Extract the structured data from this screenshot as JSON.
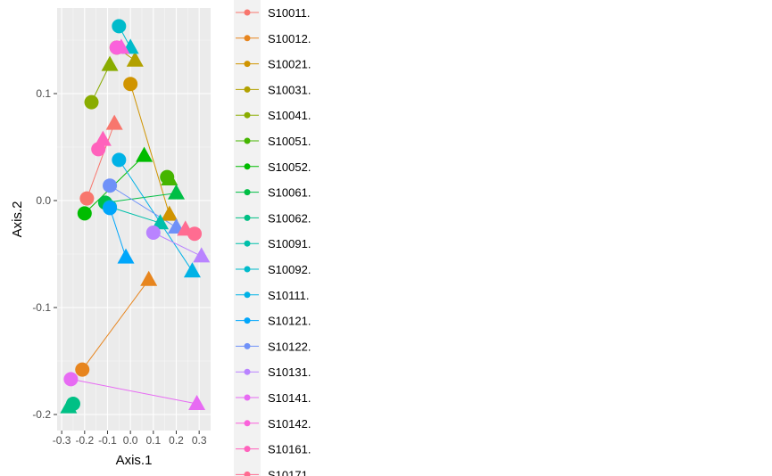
{
  "chart_data": {
    "type": "scatter",
    "xlabel": "Axis.1",
    "ylabel": "Axis.2",
    "xlim": [
      -0.32,
      0.35
    ],
    "ylim": [
      -0.215,
      0.18
    ],
    "x_ticks": [
      -0.3,
      -0.2,
      -0.1,
      0.0,
      0.1,
      0.2,
      0.3
    ],
    "x_tick_labels": [
      "-0.3",
      "-0.2",
      "-0.1",
      "0.0",
      "0.1",
      "0.2",
      "0.3"
    ],
    "y_ticks": [
      -0.2,
      -0.1,
      0.0,
      0.1
    ],
    "y_tick_labels": [
      "-0.2",
      "-0.1",
      "0.0",
      "0.1"
    ],
    "grid": true,
    "legend_position": "right",
    "panel_background": "#ebebeb",
    "series": [
      {
        "name": "S10011.",
        "color": "#F8766D",
        "circle": [
          -0.19,
          0.002
        ],
        "triangle": [
          -0.07,
          0.072
        ]
      },
      {
        "name": "S10012.",
        "color": "#E7851E",
        "circle": [
          -0.21,
          -0.158
        ],
        "triangle": [
          0.08,
          -0.074
        ]
      },
      {
        "name": "S10021.",
        "color": "#D09400",
        "circle": [
          0.0,
          0.109
        ],
        "triangle": [
          0.17,
          -0.013
        ]
      },
      {
        "name": "S10031.",
        "color": "#B2A100",
        "circle": [
          -0.06,
          0.143
        ],
        "triangle": [
          0.02,
          0.131
        ]
      },
      {
        "name": "S10041.",
        "color": "#89AC00",
        "circle": [
          -0.17,
          0.092
        ],
        "triangle": [
          -0.09,
          0.127
        ]
      },
      {
        "name": "S10051.",
        "color": "#45B500",
        "circle": [
          0.16,
          0.022
        ],
        "triangle": [
          0.17,
          0.02
        ]
      },
      {
        "name": "S10052.",
        "color": "#00BC00",
        "circle": [
          -0.2,
          -0.012
        ],
        "triangle": [
          0.06,
          0.042
        ]
      },
      {
        "name": "S10061.",
        "color": "#00BE45",
        "circle": [
          -0.11,
          -0.002
        ],
        "triangle": [
          0.2,
          0.007
        ]
      },
      {
        "name": "S10062.",
        "color": "#00C085",
        "circle": [
          -0.25,
          -0.19
        ],
        "triangle": [
          -0.27,
          -0.193
        ]
      },
      {
        "name": "S10091.",
        "color": "#00BFAA",
        "circle": [
          -0.09,
          -0.006
        ],
        "triangle": [
          0.13,
          -0.021
        ]
      },
      {
        "name": "S10092.",
        "color": "#00BBCB",
        "circle": [
          -0.05,
          0.163
        ],
        "triangle": [
          0.0,
          0.143
        ]
      },
      {
        "name": "S10111.",
        "color": "#00B2E6",
        "circle": [
          -0.05,
          0.038
        ],
        "triangle": [
          0.27,
          -0.066
        ]
      },
      {
        "name": "S10121.",
        "color": "#00A6FB",
        "circle": [
          -0.09,
          -0.007
        ],
        "triangle": [
          -0.02,
          -0.053
        ]
      },
      {
        "name": "S10122.",
        "color": "#6F91F8",
        "circle": [
          -0.09,
          0.014
        ],
        "triangle": [
          0.2,
          -0.025
        ]
      },
      {
        "name": "S10131.",
        "color": "#B983FF",
        "circle": [
          0.1,
          -0.03
        ],
        "triangle": [
          0.31,
          -0.052
        ]
      },
      {
        "name": "S10141.",
        "color": "#E76BF3",
        "circle": [
          -0.26,
          -0.167
        ],
        "triangle": [
          0.29,
          -0.19
        ]
      },
      {
        "name": "S10142.",
        "color": "#FA62DB",
        "circle": [
          -0.06,
          0.143
        ],
        "triangle": [
          -0.04,
          0.143
        ]
      },
      {
        "name": "S10161.",
        "color": "#FF62BC",
        "circle": [
          -0.14,
          0.048
        ],
        "triangle": [
          -0.12,
          0.057
        ]
      },
      {
        "name": "S10171.",
        "color": "#FF6C91",
        "circle": [
          0.28,
          -0.031
        ],
        "triangle": [
          0.24,
          -0.027
        ]
      }
    ]
  }
}
